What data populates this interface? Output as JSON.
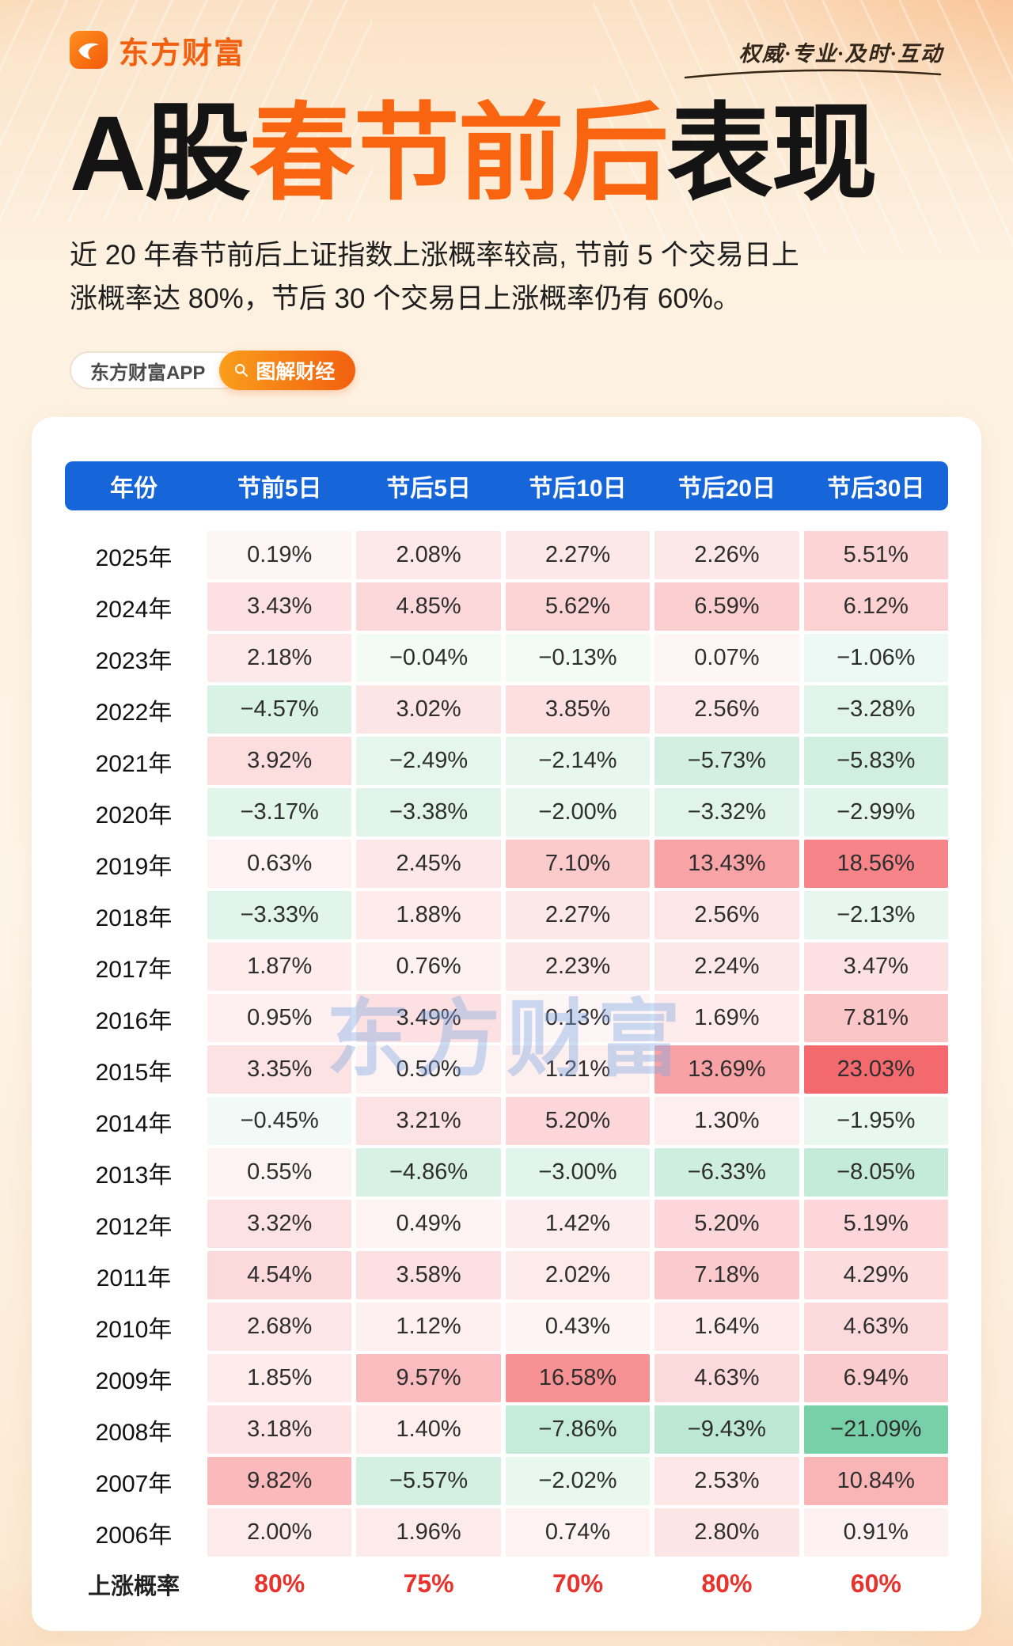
{
  "page": {
    "logo_text": "东方财富",
    "slogan": "权威·专业·及时·互动",
    "title": {
      "prefix": "A股",
      "highlight": "春节前后",
      "suffix": "表现"
    },
    "subtitle": "近 20 年春节前后上证指数上涨概率较高, 节前 5 个交易日上\n涨概率达 80%，节后 30 个交易日上涨概率仍有 60%。",
    "badges": {
      "app": "东方财富APP",
      "tag": "图解财经"
    },
    "watermark": "东方财富",
    "colors": {
      "accent_orange": "#f8640f",
      "header_blue": "#1766d9",
      "probability_red": "#e8322c",
      "positive_cell": "#f24e54",
      "negative_cell": "#6fcda2",
      "watermark_blue": "#7ea8e4"
    }
  },
  "chart_data": {
    "type": "table",
    "title": "A股春节前后表现",
    "columns": [
      "年份",
      "节前5日",
      "节后5日",
      "节后10日",
      "节后20日",
      "节后30日"
    ],
    "positive_color": "#f24e54",
    "negative_color": "#6fcda2",
    "rows": [
      {
        "year": "2025年",
        "values": [
          0.19,
          2.08,
          2.27,
          2.26,
          5.51
        ]
      },
      {
        "year": "2024年",
        "values": [
          3.43,
          4.85,
          5.62,
          6.59,
          6.12
        ]
      },
      {
        "year": "2023年",
        "values": [
          2.18,
          -0.04,
          -0.13,
          0.07,
          -1.06
        ]
      },
      {
        "year": "2022年",
        "values": [
          -4.57,
          3.02,
          3.85,
          2.56,
          -3.28
        ]
      },
      {
        "year": "2021年",
        "values": [
          3.92,
          -2.49,
          -2.14,
          -5.73,
          -5.83
        ]
      },
      {
        "year": "2020年",
        "values": [
          -3.17,
          -3.38,
          -2.0,
          -3.32,
          -2.99
        ]
      },
      {
        "year": "2019年",
        "values": [
          0.63,
          2.45,
          7.1,
          13.43,
          18.56
        ]
      },
      {
        "year": "2018年",
        "values": [
          -3.33,
          1.88,
          2.27,
          2.56,
          -2.13
        ]
      },
      {
        "year": "2017年",
        "values": [
          1.87,
          0.76,
          2.23,
          2.24,
          3.47
        ]
      },
      {
        "year": "2016年",
        "values": [
          0.95,
          3.49,
          0.13,
          1.69,
          7.81
        ]
      },
      {
        "year": "2015年",
        "values": [
          3.35,
          0.5,
          1.21,
          13.69,
          23.03
        ]
      },
      {
        "year": "2014年",
        "values": [
          -0.45,
          3.21,
          5.2,
          1.3,
          -1.95
        ]
      },
      {
        "year": "2013年",
        "values": [
          0.55,
          -4.86,
          -3.0,
          -6.33,
          -8.05
        ]
      },
      {
        "year": "2012年",
        "values": [
          3.32,
          0.49,
          1.42,
          5.2,
          5.19
        ]
      },
      {
        "year": "2011年",
        "values": [
          4.54,
          3.58,
          2.02,
          7.18,
          4.29
        ]
      },
      {
        "year": "2010年",
        "values": [
          2.68,
          1.12,
          0.43,
          1.64,
          4.63
        ]
      },
      {
        "year": "2009年",
        "values": [
          1.85,
          9.57,
          16.58,
          4.63,
          6.94
        ]
      },
      {
        "year": "2008年",
        "values": [
          3.18,
          1.4,
          -7.86,
          -9.43,
          -21.09
        ]
      },
      {
        "year": "2007年",
        "values": [
          9.82,
          -5.57,
          -2.02,
          2.53,
          10.84
        ]
      },
      {
        "year": "2006年",
        "values": [
          2.0,
          1.96,
          0.74,
          2.8,
          0.91
        ]
      }
    ],
    "footer": {
      "label": "上涨概率",
      "values": [
        "80%",
        "75%",
        "70%",
        "80%",
        "60%"
      ]
    }
  }
}
